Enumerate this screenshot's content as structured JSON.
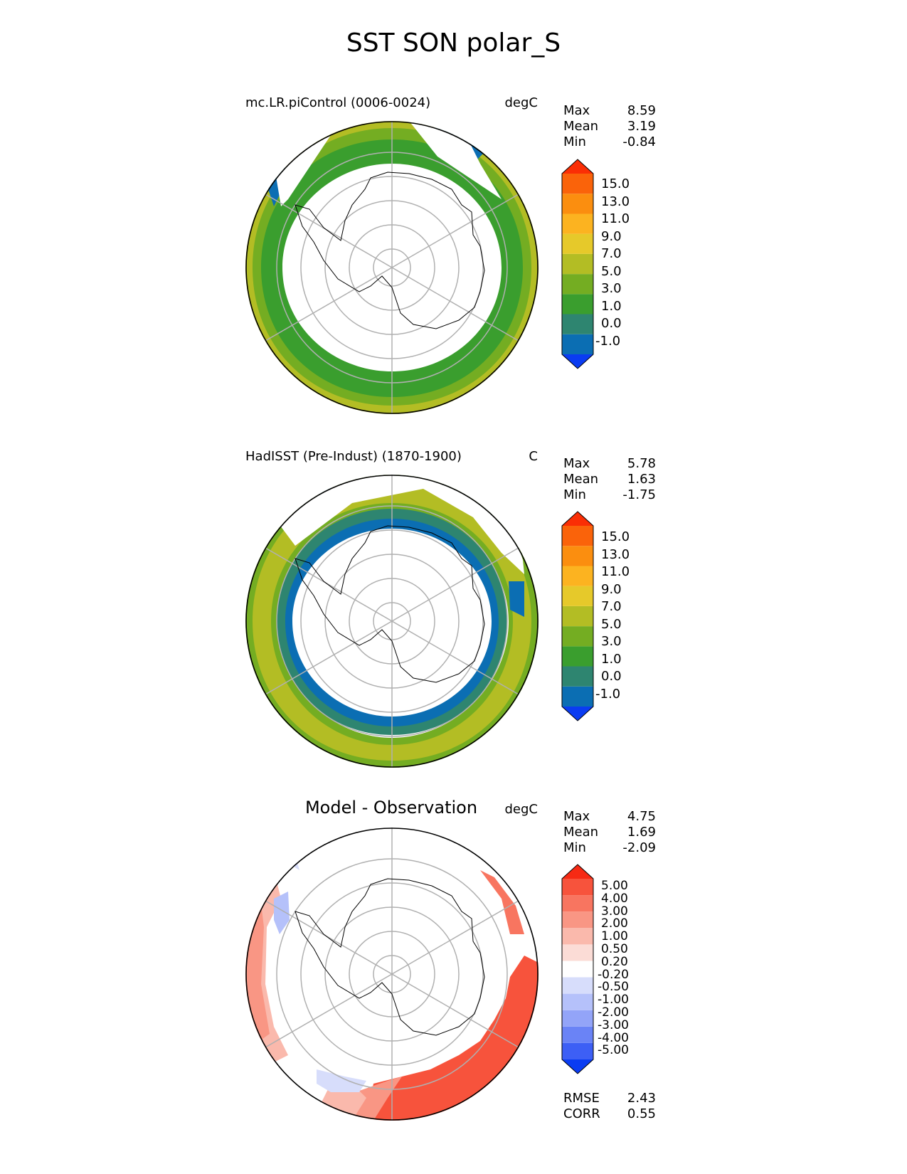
{
  "figure": {
    "title": "SST SON polar_S"
  },
  "panels": [
    {
      "name": "model",
      "left_title": "mc.LR.piControl (0006-0024)",
      "units": "degC",
      "stats": [
        {
          "label": "Max",
          "value": "8.59"
        },
        {
          "label": "Mean",
          "value": "3.19"
        },
        {
          "label": "Min",
          "value": "-0.84"
        }
      ],
      "colorbar": {
        "colors": [
          "#0a3cf2",
          "#0b6eb3",
          "#2e8570",
          "#3a9e2e",
          "#74ad22",
          "#b3bd24",
          "#e6c92a",
          "#fcb320",
          "#fb8e0f",
          "#fa630a",
          "#fa2e05"
        ],
        "ticks": [
          "15.0",
          "13.0",
          "11.0",
          "9.0",
          "7.0",
          "5.0",
          "3.0",
          "1.0",
          "0.0",
          "-1.0"
        ]
      }
    },
    {
      "name": "observation",
      "left_title": "HadISST (Pre-Indust) (1870-1900)",
      "units": "C",
      "stats": [
        {
          "label": "Max",
          "value": "5.78"
        },
        {
          "label": "Mean",
          "value": "1.63"
        },
        {
          "label": "Min",
          "value": "-1.75"
        }
      ],
      "colorbar": {
        "colors": [
          "#0a3cf2",
          "#0b6eb3",
          "#2e8570",
          "#3a9e2e",
          "#74ad22",
          "#b3bd24",
          "#e6c92a",
          "#fcb320",
          "#fb8e0f",
          "#fa630a",
          "#fa2e05"
        ],
        "ticks": [
          "15.0",
          "13.0",
          "11.0",
          "9.0",
          "7.0",
          "5.0",
          "3.0",
          "1.0",
          "0.0",
          "-1.0"
        ]
      }
    },
    {
      "name": "difference",
      "heading": "Model - Observation",
      "units": "degC",
      "stats": [
        {
          "label": "Max",
          "value": "4.75"
        },
        {
          "label": "Mean",
          "value": "1.69"
        },
        {
          "label": "Min",
          "value": "-2.09"
        }
      ],
      "colorbar": {
        "colors": [
          "#0a3cf2",
          "#3d5ff5",
          "#6a83f6",
          "#93a4f8",
          "#b5c1fa",
          "#d7ddfb",
          "#ffffff",
          "#fbdcd6",
          "#fab9ac",
          "#f99684",
          "#f87560",
          "#f7533c",
          "#f62a14"
        ],
        "ticks": [
          "5.00",
          "4.00",
          "3.00",
          "2.00",
          "1.00",
          "0.50",
          "0.20",
          "-0.20",
          "-0.50",
          "-1.00",
          "-2.00",
          "-3.00",
          "-4.00",
          "-5.00"
        ]
      },
      "metrics": [
        {
          "label": "RMSE",
          "value": "2.43"
        },
        {
          "label": "CORR",
          "value": "0.55"
        }
      ]
    }
  ]
}
